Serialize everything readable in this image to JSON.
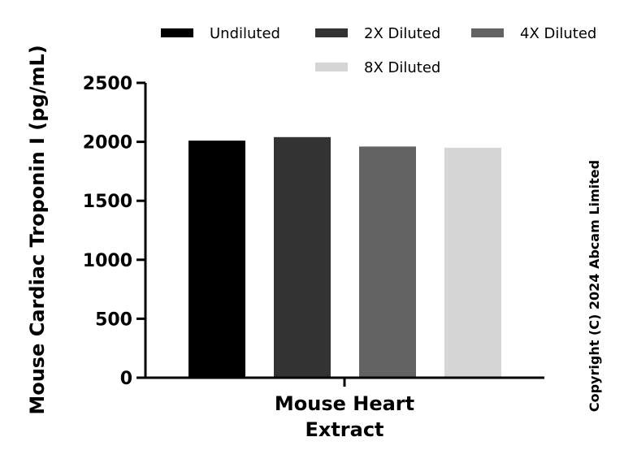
{
  "chart_data": {
    "type": "bar",
    "categories": [
      "Mouse Heart Extract"
    ],
    "category_label_lines": [
      "Mouse Heart",
      "Extract"
    ],
    "series": [
      {
        "name": "Undiluted",
        "values": [
          2010
        ],
        "color": "#000000"
      },
      {
        "name": "2X Diluted",
        "values": [
          2040
        ],
        "color": "#333333"
      },
      {
        "name": "4X Diluted",
        "values": [
          1960
        ],
        "color": "#636363"
      },
      {
        "name": "8X Diluted",
        "values": [
          1950
        ],
        "color": "#d6d6d6"
      }
    ],
    "title": "",
    "xlabel": "",
    "ylabel": "Mouse Cardiac Troponin I (pg/mL)",
    "ylim": [
      0,
      2500
    ],
    "yticks": [
      0,
      500,
      1000,
      1500,
      2000,
      2500
    ],
    "grid": false,
    "legend_position": "top"
  },
  "copyright": "Copyright (C) 2024 Abcam Limited"
}
